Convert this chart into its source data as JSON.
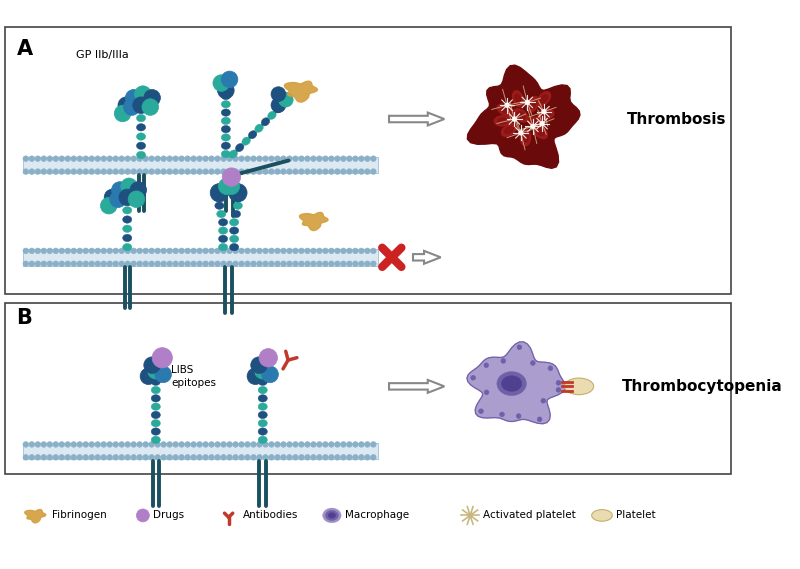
{
  "panel_A_label": "A",
  "panel_B_label": "B",
  "label_GP": "GP IIb/IIIa",
  "label_LIBS": "LIBS\nepitopes",
  "label_thrombosis": "Thrombosis",
  "label_thrombocytopenia": "Thrombocytopenia",
  "legend_items": [
    "Fibrinogen",
    "Drugs",
    "Antibodies",
    "Macrophage",
    "Activated platelet",
    "Platelet"
  ],
  "color_dark_blue": "#1e5080",
  "color_mid_blue": "#2a7ab0",
  "color_teal": "#2aaa9a",
  "color_dark_teal": "#1a7060",
  "color_stem": "#1a5060",
  "color_mem_fill": "#dce8f2",
  "color_mem_dot": "#8ab0c8",
  "color_fibrinogen": "#d4a040",
  "color_drug": "#b07fc7",
  "color_antibody": "#c0392b",
  "color_macrophage_outer": "#a090c8",
  "color_macrophage_inner": "#7060a8",
  "color_macrophage_nucleus": "#504090",
  "color_platelet_tan": "#e8d8a8",
  "color_red_x": "#cc2222",
  "color_thrombosis": "#7a1010",
  "color_rbc": "#8b1515",
  "bg": "#ffffff"
}
